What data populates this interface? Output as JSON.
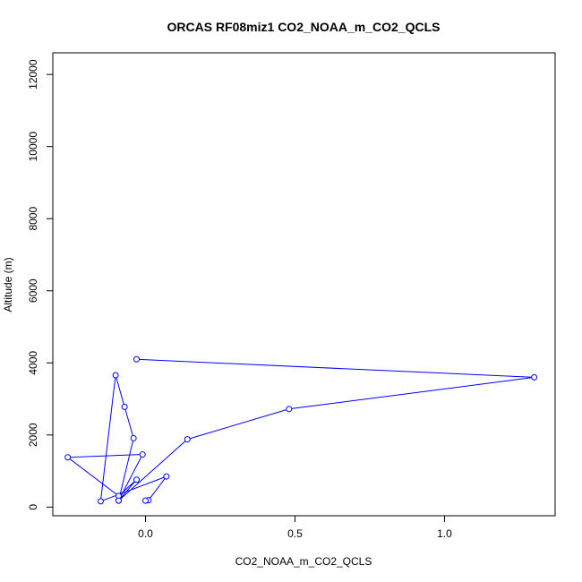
{
  "chart_data": {
    "type": "line",
    "title": "ORCAS RF08miz1 CO2_NOAA_m_CO2_QCLS",
    "xlabel": "CO2_NOAA_m_CO2_QCLS",
    "ylabel": "Altitude (m)",
    "xlim": [
      -0.31,
      1.37
    ],
    "ylim": [
      -240,
      12600
    ],
    "x_ticks": [
      0.0,
      0.5,
      1.0
    ],
    "x_tick_labels": [
      "0.0",
      "0.5",
      "1.0"
    ],
    "y_ticks": [
      0,
      2000,
      4000,
      6000,
      8000,
      10000,
      12000
    ],
    "y_tick_labels": [
      "0",
      "2000",
      "4000",
      "6000",
      "8000",
      "10000",
      "12000"
    ],
    "grid": false,
    "legend": "none",
    "line_color": "#0000ff",
    "marker": "open-circle",
    "series": [
      {
        "x": [
          -0.03,
          1.3,
          0.48,
          0.14,
          -0.09,
          -0.01,
          -0.26,
          -0.09,
          -0.03,
          -0.09,
          -0.04,
          -0.07,
          -0.1,
          -0.15,
          0.07,
          0.01,
          0.0
        ],
        "y": [
          4100,
          3600,
          2720,
          1880,
          180,
          1460,
          1380,
          310,
          760,
          180,
          1910,
          2780,
          3660,
          160,
          850,
          190,
          180
        ]
      }
    ]
  }
}
